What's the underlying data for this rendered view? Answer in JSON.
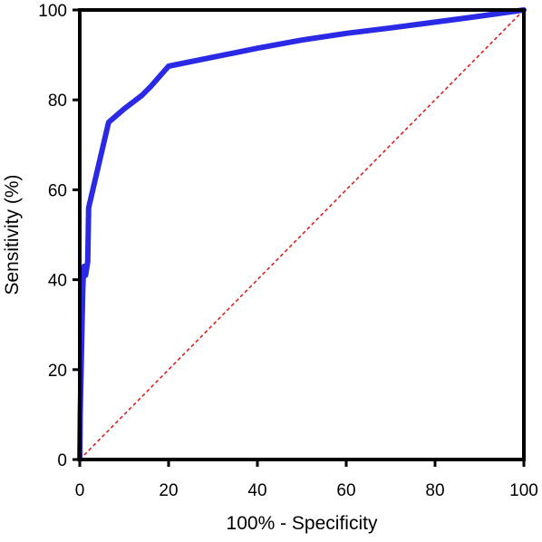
{
  "chart_data": {
    "type": "line",
    "title": "",
    "xlabel": "100% - Specificity",
    "ylabel": "Sensitivity (%)",
    "xlim": [
      0,
      100
    ],
    "ylim": [
      0,
      100
    ],
    "x_ticks": [
      "0",
      "20",
      "40",
      "60",
      "80",
      "100"
    ],
    "y_ticks": [
      "0",
      "20",
      "40",
      "60",
      "80",
      "100"
    ],
    "grid": false,
    "legend": "none",
    "series": [
      {
        "color": "#2a2ae6",
        "style": "solid",
        "x": [
          0,
          0.1,
          0.3,
          0.5,
          0.7,
          0.8,
          1.0,
          1.2,
          1.3,
          1.8,
          2.0,
          6.5,
          10,
          14,
          16,
          20,
          30,
          40,
          50,
          60,
          70,
          80,
          90,
          100
        ],
        "y": [
          0,
          10,
          20,
          30,
          38,
          41,
          43,
          43,
          41,
          44,
          56,
          75,
          78,
          81,
          83,
          87.5,
          89.5,
          91.5,
          93.3,
          94.8,
          96,
          97.3,
          98.6,
          100
        ]
      },
      {
        "color": "#e02020",
        "style": "dashed",
        "x": [
          0,
          100
        ],
        "y": [
          0,
          100
        ]
      }
    ]
  }
}
